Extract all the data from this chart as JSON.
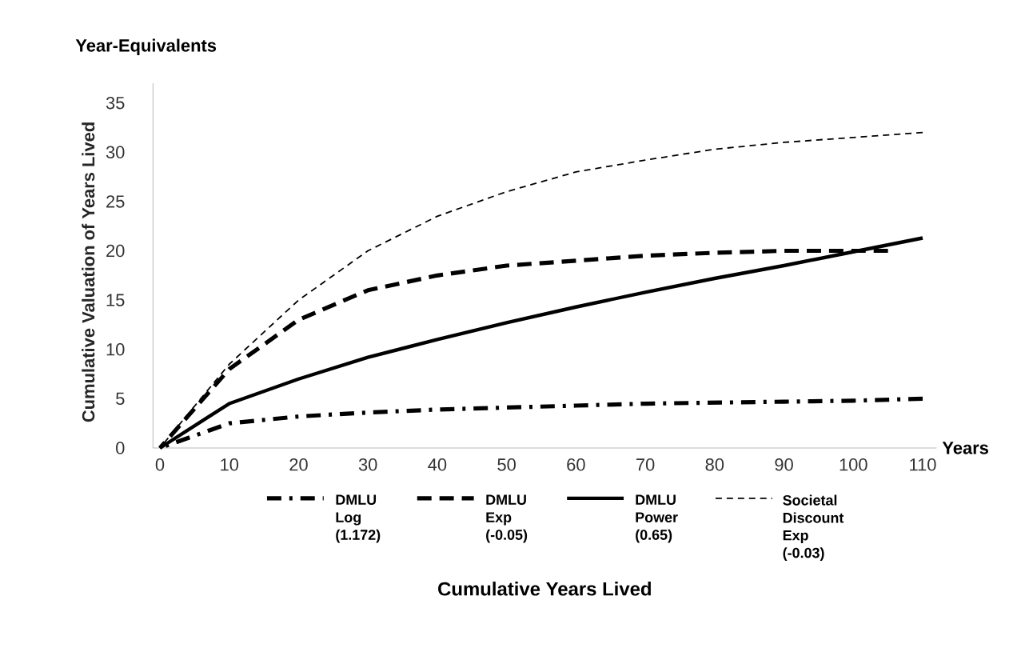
{
  "chart_data": {
    "type": "line",
    "title": "Year-Equivalents",
    "ylabel": "Cumulative Valuation of Years Lived",
    "annotations": [
      "Years",
      "Cumulative Years Lived"
    ],
    "x": [
      0,
      10,
      20,
      30,
      40,
      50,
      60,
      70,
      80,
      90,
      100,
      110
    ],
    "xlim": [
      -1,
      112
    ],
    "ylim": [
      0,
      37
    ],
    "xticks": [
      0,
      10,
      20,
      30,
      40,
      50,
      60,
      70,
      80,
      90,
      100,
      110
    ],
    "yticks": [
      0,
      5,
      10,
      15,
      20,
      25,
      30,
      35
    ],
    "grid": false,
    "legend": "bottom",
    "marker": "none",
    "series": [
      {
        "name": "DMLU Log (1.172)",
        "color": "#000000",
        "line_style": "dashdot",
        "values": [
          0,
          2.5,
          3.2,
          3.6,
          3.9,
          4.1,
          4.3,
          4.5,
          4.6,
          4.7,
          4.8,
          5.0
        ]
      },
      {
        "name": "DMLU Exp (-0.05)",
        "color": "#000000",
        "line_style": "dashed",
        "x": [
          0,
          10,
          20,
          30,
          40,
          50,
          60,
          70,
          80,
          90,
          100,
          105
        ],
        "values": [
          0,
          8,
          13,
          16,
          17.5,
          18.5,
          19,
          19.5,
          19.8,
          20,
          20,
          20
        ]
      },
      {
        "name": "DMLU Power (0.65)",
        "color": "#000000",
        "line_style": "solid",
        "values": [
          0,
          4.5,
          7,
          9.2,
          11,
          12.7,
          14.3,
          15.8,
          17.2,
          18.5,
          19.9,
          21.3
        ]
      },
      {
        "name": "Societal Discount Exp (-0.03)",
        "color": "#000000",
        "line_style": "dashed",
        "values": [
          0,
          8.5,
          15,
          20,
          23.5,
          26,
          28,
          29.2,
          30.3,
          31,
          31.5,
          32
        ]
      }
    ]
  }
}
